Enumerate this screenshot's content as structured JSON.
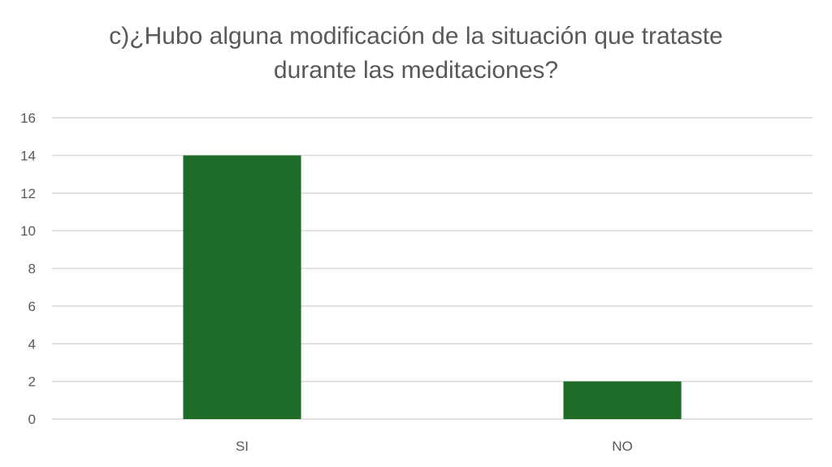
{
  "chart_data": {
    "type": "bar",
    "title": "c)¿Hubo alguna modificación de la situación que trataste durante las meditaciones?",
    "categories": [
      "SI",
      "NO"
    ],
    "values": [
      14,
      2
    ],
    "ylim": [
      0,
      16
    ],
    "yticks": [
      0,
      2,
      4,
      6,
      8,
      10,
      12,
      14,
      16
    ],
    "xlabel": "",
    "ylabel": "",
    "grid": true,
    "legend": "none",
    "bar_color": "#1d6b26",
    "grid_color": "#d9d9d9",
    "tick_label_color": "#595959",
    "title_color": "#595959"
  }
}
